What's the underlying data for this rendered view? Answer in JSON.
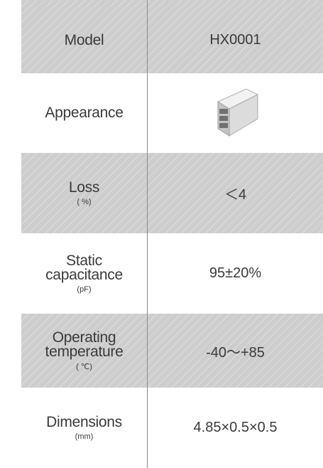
{
  "table": {
    "rows": [
      {
        "label": "Model",
        "value": "HX0001"
      },
      {
        "label": "Appearance"
      },
      {
        "label": "Loss",
        "unit": "( %)",
        "value": "＜4"
      },
      {
        "label": "Static capacitance",
        "unit": "(pF)",
        "value": "95±20%"
      },
      {
        "label": "Operating temperature",
        "unit": "( ℃)",
        "value": "-40～+85"
      },
      {
        "label": "Dimensions",
        "unit": "(mm)",
        "value": "4.85×0.5×0.5"
      }
    ]
  }
}
